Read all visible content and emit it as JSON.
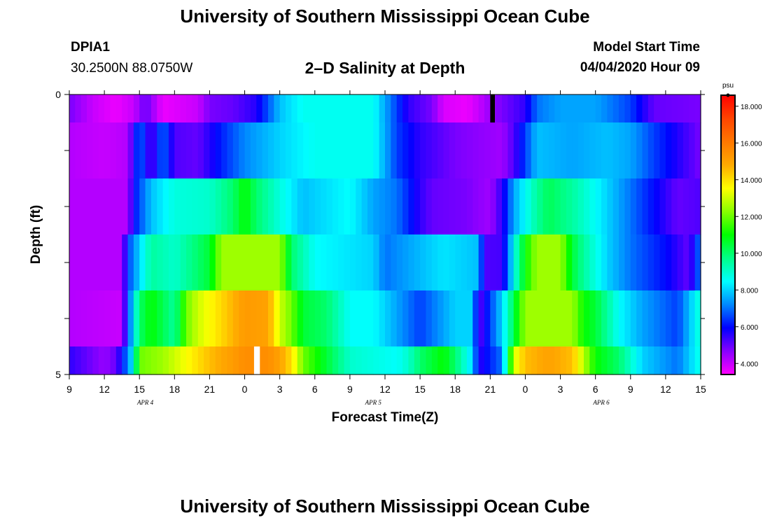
{
  "header": {
    "main_title": "University of Southern Mississippi Ocean Cube",
    "station_id": "DPIA1",
    "station_coords": "30.2500N 88.0750W",
    "plot_title": "2–D Salinity at Depth",
    "model_start_label": "Model Start Time",
    "model_start_value": "04/04/2020 Hour 09"
  },
  "footer": {
    "bottom_title": "University of Southern Mississippi Ocean Cube"
  },
  "chart_data": {
    "type": "heatmap",
    "title": "2–D Salinity at Depth",
    "xlabel": "Forecast Time(Z)",
    "ylabel": "Depth (ft)",
    "x_tick_labels": [
      "9",
      "12",
      "15",
      "18",
      "21",
      "0",
      "3",
      "6",
      "9",
      "12",
      "15",
      "18",
      "21",
      "0",
      "3",
      "6",
      "9",
      "12",
      "15"
    ],
    "date_labels": [
      {
        "label": "APR 4",
        "hour_index": 6.5
      },
      {
        "label": "APR 5",
        "hour_index": 26
      },
      {
        "label": "APR 6",
        "hour_index": 45.5
      }
    ],
    "x_range_hours_from_start": [
      0,
      54
    ],
    "y_tick_labels": [
      "0",
      "5"
    ],
    "y_range": [
      0,
      5
    ],
    "colorbar": {
      "unit": "psu",
      "min": 3.4,
      "max": 18.6,
      "ticks": [
        4.0,
        6.0,
        8.0,
        10.0,
        12.0,
        14.0,
        16.0,
        18.0
      ],
      "tick_labels": [
        "4.000",
        "6.000",
        "8.000",
        "10.000",
        "12.000",
        "14.000",
        "16.000",
        "18.000"
      ],
      "colors": [
        "#ff00ff",
        "#8800ff",
        "#0000ff",
        "#0088ff",
        "#00ffff",
        "#00ff88",
        "#00ff00",
        "#88ff00",
        "#ffff00",
        "#ffaa00",
        "#ff7700",
        "#ff4400",
        "#ff0000"
      ]
    },
    "layers": [
      {
        "depth_top": 0.0,
        "depth_bottom": 0.5,
        "knots": [
          [
            0,
            4.8
          ],
          [
            2,
            4.0
          ],
          [
            4,
            3.6
          ],
          [
            5.5,
            4.0
          ],
          [
            6.5,
            5.0
          ],
          [
            8,
            3.6
          ],
          [
            11,
            4.0
          ],
          [
            12,
            4.8
          ],
          [
            14,
            5.0
          ],
          [
            16,
            5.6
          ],
          [
            18,
            7.8
          ],
          [
            20,
            8.6
          ],
          [
            26,
            8.6
          ],
          [
            27,
            7.5
          ],
          [
            29,
            5.5
          ],
          [
            31,
            4.8
          ],
          [
            32,
            3.8
          ],
          [
            34,
            3.6
          ],
          [
            35,
            4.0
          ],
          [
            36,
            4.5
          ],
          [
            37,
            4.8
          ],
          [
            39,
            5.5
          ],
          [
            40,
            7.0
          ],
          [
            42,
            7.5
          ],
          [
            45,
            7.5
          ],
          [
            48,
            6.5
          ],
          [
            50,
            5.0
          ],
          [
            54,
            4.8
          ]
        ]
      },
      {
        "depth_top": 0.5,
        "depth_bottom": 1.5,
        "knots": [
          [
            0,
            4.2
          ],
          [
            3,
            4.0
          ],
          [
            5,
            4.2
          ],
          [
            6,
            7.0
          ],
          [
            7,
            5.0
          ],
          [
            8,
            7.0
          ],
          [
            9,
            5.2
          ],
          [
            11,
            5.0
          ],
          [
            13,
            6.2
          ],
          [
            15,
            7.2
          ],
          [
            18,
            8.0
          ],
          [
            21,
            8.6
          ],
          [
            26,
            8.6
          ],
          [
            28,
            6.5
          ],
          [
            30,
            5.5
          ],
          [
            33,
            4.8
          ],
          [
            35,
            4.6
          ],
          [
            37,
            4.4
          ],
          [
            38,
            5.2
          ],
          [
            40,
            7.8
          ],
          [
            43,
            7.5
          ],
          [
            46,
            7.8
          ],
          [
            48,
            7.5
          ],
          [
            50,
            6.5
          ],
          [
            54,
            4.8
          ]
        ]
      },
      {
        "depth_top": 1.5,
        "depth_bottom": 2.5,
        "knots": [
          [
            0,
            4.2
          ],
          [
            5,
            4.2
          ],
          [
            5.5,
            6.0
          ],
          [
            7,
            7.8
          ],
          [
            9,
            8.8
          ],
          [
            12,
            9.0
          ],
          [
            14,
            10.0
          ],
          [
            15,
            11.0
          ],
          [
            16,
            10.0
          ],
          [
            18,
            8.8
          ],
          [
            20,
            7.8
          ],
          [
            24,
            8.5
          ],
          [
            26,
            7.5
          ],
          [
            28,
            7.0
          ],
          [
            30,
            5.5
          ],
          [
            31,
            5.0
          ],
          [
            34,
            4.8
          ],
          [
            36,
            4.4
          ],
          [
            37,
            5.5
          ],
          [
            38,
            7.5
          ],
          [
            40,
            9.5
          ],
          [
            41,
            10.2
          ],
          [
            43,
            9.5
          ],
          [
            45,
            8.5
          ],
          [
            48,
            7.0
          ],
          [
            50,
            6.0
          ],
          [
            52,
            5.0
          ],
          [
            54,
            5.2
          ]
        ]
      },
      {
        "depth_top": 2.5,
        "depth_bottom": 3.5,
        "knots": [
          [
            0,
            4.2
          ],
          [
            4.5,
            4.2
          ],
          [
            5,
            6.5
          ],
          [
            6,
            8.0
          ],
          [
            7,
            9.5
          ],
          [
            9,
            9.0
          ],
          [
            11,
            10.0
          ],
          [
            12,
            10.5
          ],
          [
            13,
            12.5
          ],
          [
            18,
            12.5
          ],
          [
            19,
            10.0
          ],
          [
            21,
            8.5
          ],
          [
            26,
            8.0
          ],
          [
            27,
            7.0
          ],
          [
            29,
            7.5
          ],
          [
            32,
            8.2
          ],
          [
            35,
            7.8
          ],
          [
            35.5,
            5.2
          ],
          [
            37,
            5.3
          ],
          [
            38,
            8.5
          ],
          [
            39,
            11.0
          ],
          [
            40,
            12.5
          ],
          [
            42,
            12.5
          ],
          [
            43,
            10.5
          ],
          [
            44,
            9.5
          ],
          [
            46,
            8.0
          ],
          [
            48,
            7.0
          ],
          [
            51,
            6.0
          ],
          [
            53,
            5.0
          ],
          [
            54,
            7.2
          ]
        ]
      },
      {
        "depth_top": 3.5,
        "depth_bottom": 4.5,
        "knots": [
          [
            0,
            4.2
          ],
          [
            4.5,
            4.0
          ],
          [
            5,
            6.5
          ],
          [
            6,
            10.0
          ],
          [
            7,
            11.0
          ],
          [
            9,
            9.5
          ],
          [
            10,
            12.0
          ],
          [
            11,
            13.0
          ],
          [
            15,
            15.2
          ],
          [
            17,
            15.0
          ],
          [
            18,
            13.0
          ],
          [
            19,
            12.0
          ],
          [
            20,
            10.5
          ],
          [
            22,
            10.0
          ],
          [
            24,
            8.5
          ],
          [
            26,
            8.5
          ],
          [
            28,
            7.5
          ],
          [
            30,
            6.5
          ],
          [
            33,
            8.0
          ],
          [
            34.5,
            8.0
          ],
          [
            35,
            5.0
          ],
          [
            36,
            6.5
          ],
          [
            37,
            8.0
          ],
          [
            39,
            12.5
          ],
          [
            43,
            12.5
          ],
          [
            44,
            11.0
          ],
          [
            45,
            10.5
          ],
          [
            47,
            8.5
          ],
          [
            49,
            7.5
          ],
          [
            52,
            6.5
          ],
          [
            54,
            9.0
          ]
        ]
      },
      {
        "depth_top": 4.5,
        "depth_bottom": 5.0,
        "knots": [
          [
            0,
            5.5
          ],
          [
            3,
            4.5
          ],
          [
            4,
            5.0
          ],
          [
            4.5,
            6.0
          ],
          [
            5.5,
            8.5
          ],
          [
            6,
            12.0
          ],
          [
            8,
            12.5
          ],
          [
            10,
            13.5
          ],
          [
            12,
            14.5
          ],
          [
            15,
            15.5
          ],
          [
            17,
            15.5
          ],
          [
            18,
            15.0
          ],
          [
            19,
            14.0
          ],
          [
            20,
            12.0
          ],
          [
            22,
            10.5
          ],
          [
            24,
            9.0
          ],
          [
            28,
            8.5
          ],
          [
            29,
            9.0
          ],
          [
            30,
            10.0
          ],
          [
            31,
            10.5
          ],
          [
            32,
            11.0
          ],
          [
            33,
            10.0
          ],
          [
            34.5,
            8.0
          ],
          [
            35,
            5.5
          ],
          [
            37,
            7.0
          ],
          [
            38,
            13.0
          ],
          [
            39,
            14.5
          ],
          [
            41,
            15.0
          ],
          [
            43,
            14.5
          ],
          [
            45,
            11.0
          ],
          [
            47,
            10.0
          ],
          [
            49,
            8.0
          ],
          [
            52,
            7.0
          ],
          [
            54,
            8.8
          ]
        ]
      }
    ],
    "gap_marks": [
      {
        "depth_top": 0.0,
        "depth_bottom": 0.5,
        "hour_from": 36,
        "hour_to": 36.4,
        "color": "#000000"
      },
      {
        "depth_top": 4.5,
        "depth_bottom": 5.0,
        "hour_from": 15.8,
        "hour_to": 16.3,
        "color": "#ffffff"
      }
    ]
  }
}
